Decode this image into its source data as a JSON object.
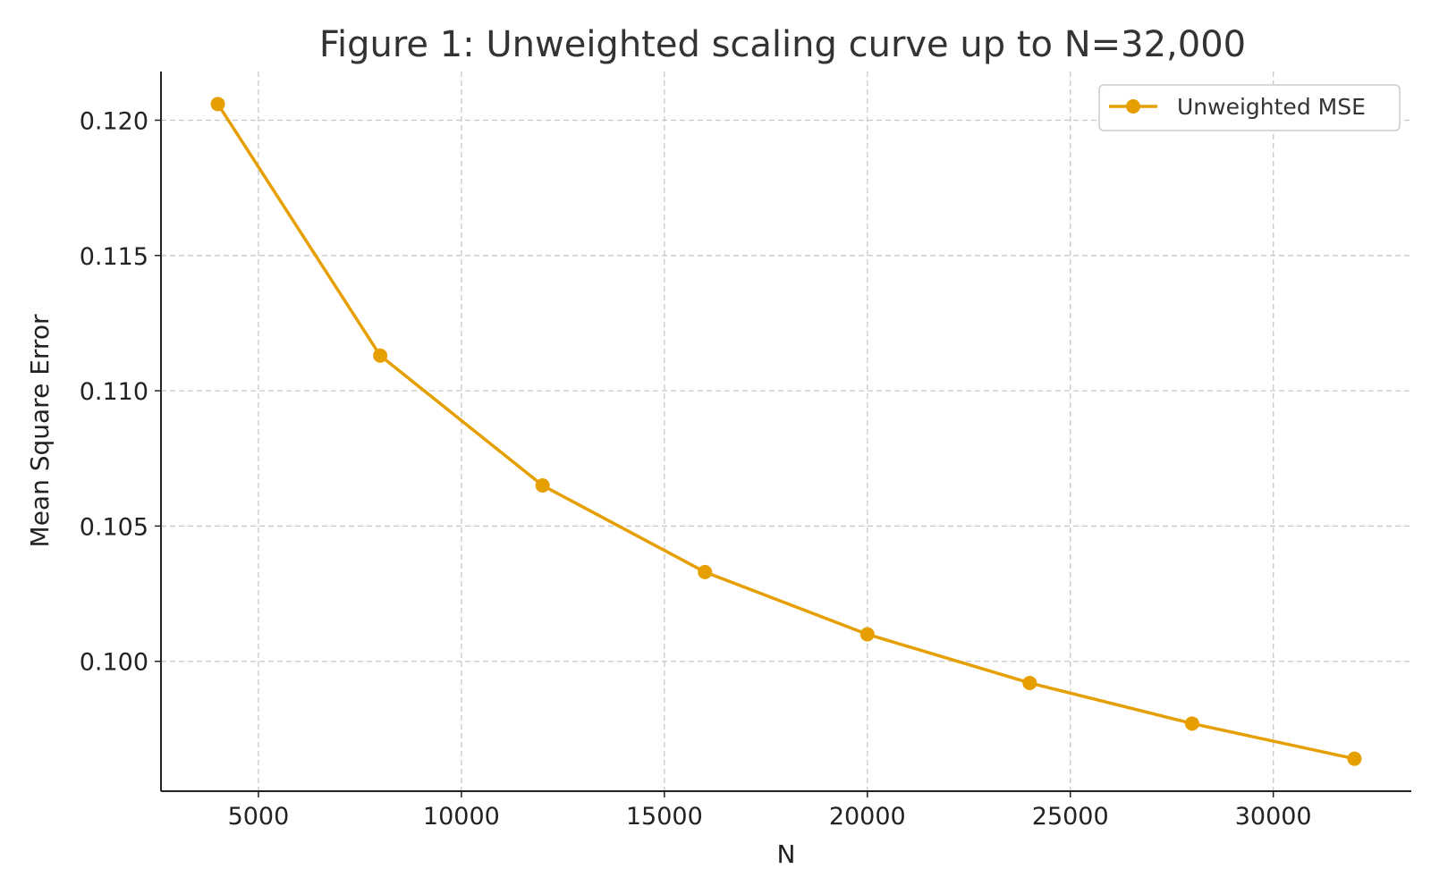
{
  "chart_data": {
    "type": "line",
    "title": "Figure 1: Unweighted scaling curve up to N=32,000",
    "xlabel": "N",
    "ylabel": "Mean Square Error",
    "xlim": [
      2600,
      33400
    ],
    "ylim": [
      0.0952,
      0.1218
    ],
    "xticks": [
      5000,
      10000,
      15000,
      20000,
      25000,
      30000
    ],
    "xtick_labels": [
      "5000",
      "10000",
      "15000",
      "20000",
      "25000",
      "30000"
    ],
    "yticks": [
      0.1,
      0.105,
      0.11,
      0.115,
      0.12
    ],
    "ytick_labels": [
      "0.100",
      "0.105",
      "0.110",
      "0.115",
      "0.120"
    ],
    "grid": true,
    "legend_position": "top-right",
    "series": [
      {
        "name": "Unweighted MSE",
        "color": "#E69F00",
        "marker": "circle",
        "x": [
          4000,
          8000,
          12000,
          16000,
          20000,
          24000,
          28000,
          32000
        ],
        "y": [
          0.1206,
          0.1113,
          0.1065,
          0.1033,
          0.101,
          0.0992,
          0.0977,
          0.0964
        ]
      }
    ]
  }
}
